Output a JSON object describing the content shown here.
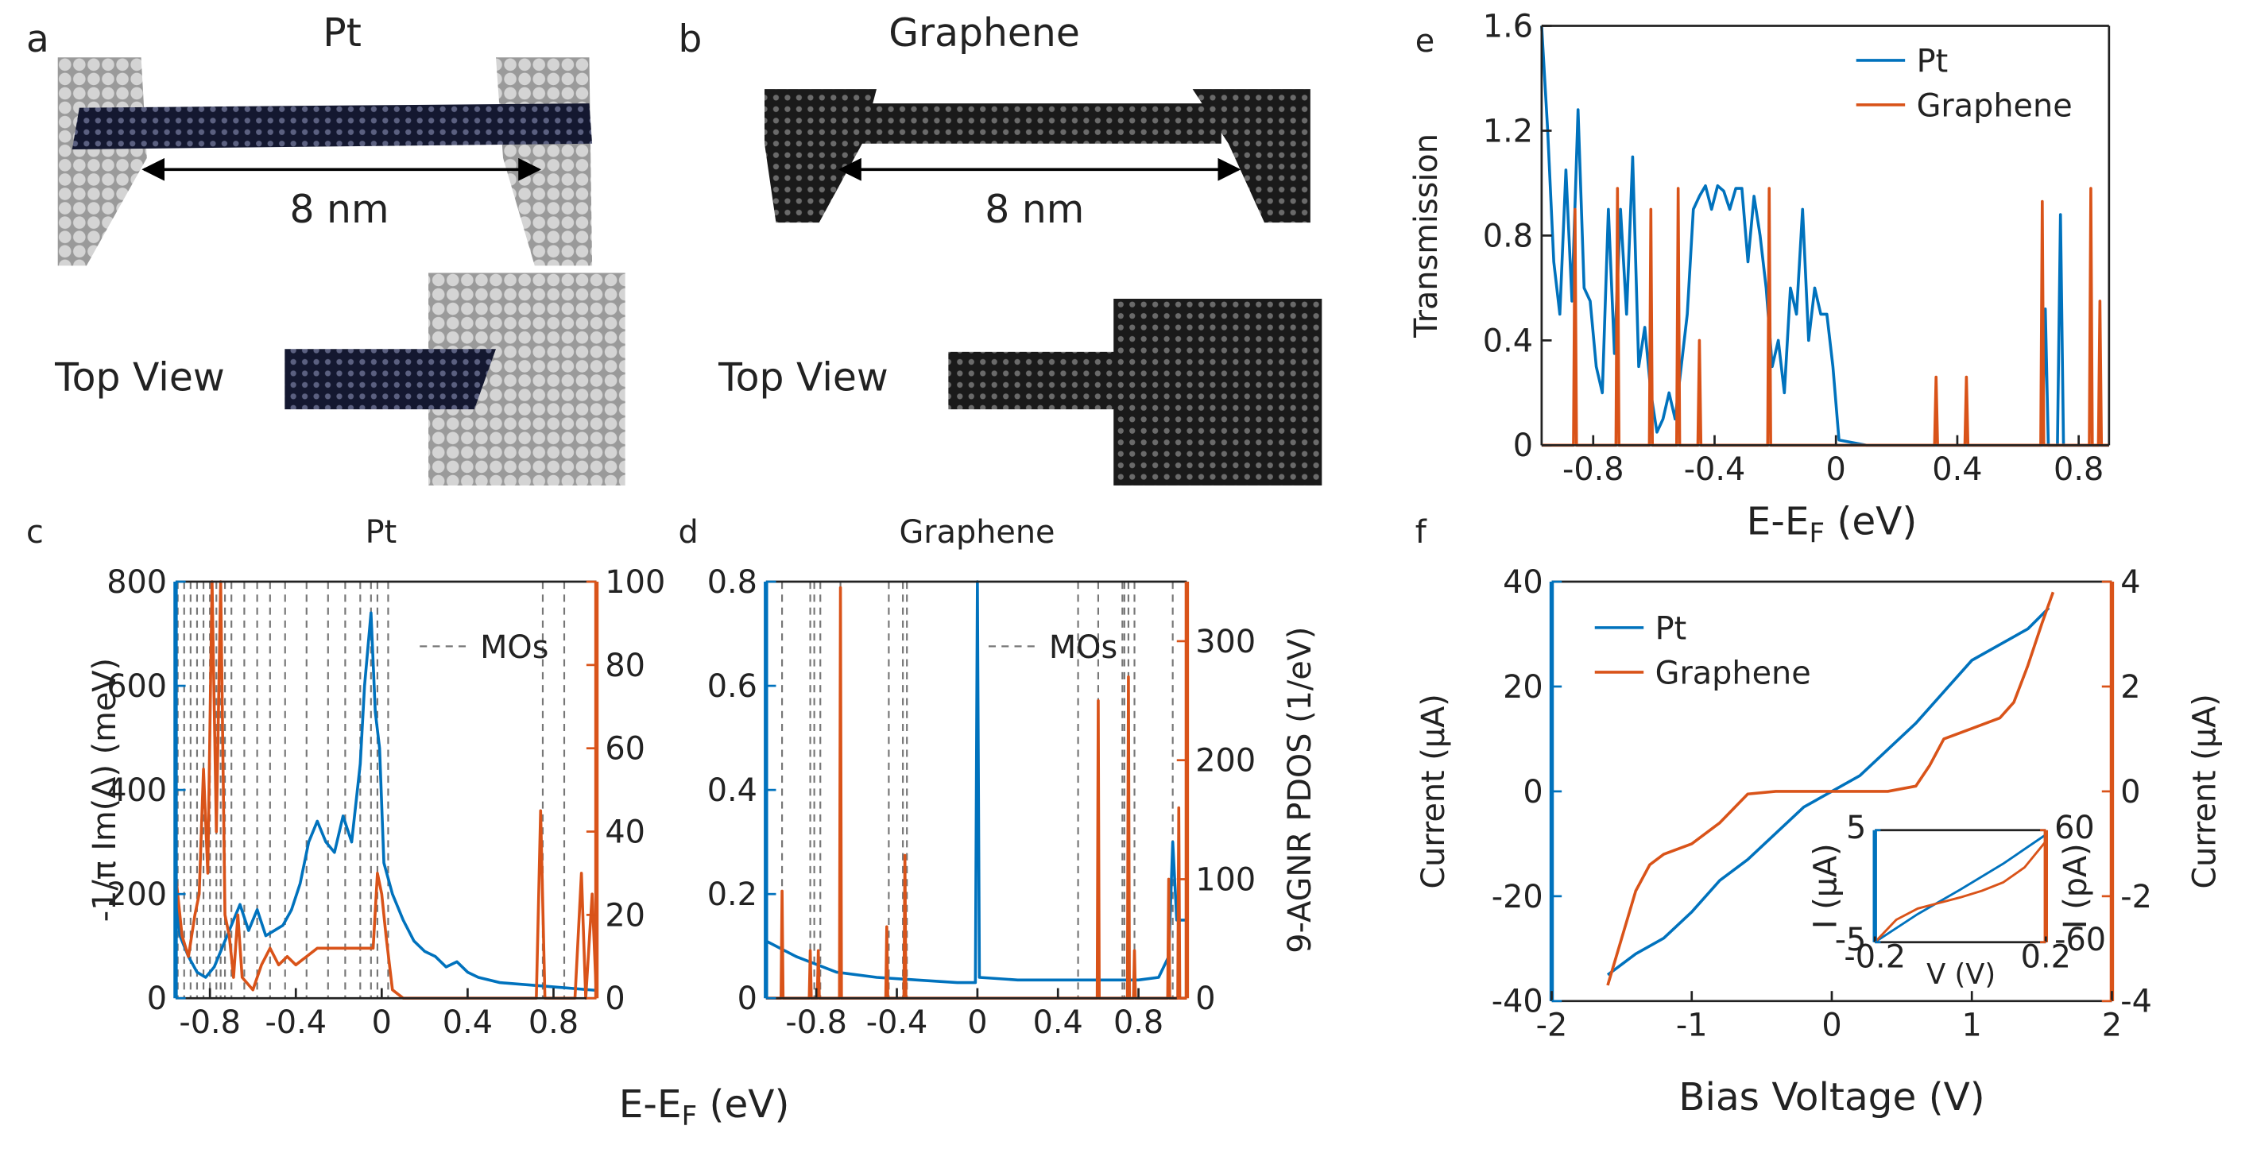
{
  "illustrations": [
    {
      "panel": "a",
      "title": "Pt",
      "length": "8 nm",
      "view": "Top View"
    },
    {
      "panel": "b",
      "title": "Graphene",
      "length": "8 nm",
      "view": "Top View"
    }
  ],
  "chart_data": [
    {
      "panel": "c",
      "type": "line",
      "title": "Pt",
      "xlabel": [
        "E-E",
        "F",
        " (eV)"
      ],
      "ylabel": "-1/π Im(Δ) (meV)",
      "xlim": [
        -0.96,
        1.0
      ],
      "xticks": [
        -0.8,
        -0.4,
        0,
        0.4,
        0.8
      ],
      "ylim": [
        0,
        800
      ],
      "yticks": [
        0,
        200,
        400,
        600,
        800
      ],
      "y_color": "#0072bd",
      "y2lim": [
        0,
        100
      ],
      "y2ticks": [
        0,
        20,
        40,
        60,
        80,
        100
      ],
      "y2_color": "#d95319",
      "vlines": {
        "name": "MOs",
        "color": "#777777",
        "x": [
          -0.95,
          -0.92,
          -0.89,
          -0.86,
          -0.83,
          -0.8,
          -0.77,
          -0.75,
          -0.73,
          -0.7,
          -0.64,
          -0.58,
          -0.52,
          -0.45,
          -0.35,
          -0.25,
          -0.17,
          -0.1,
          -0.05,
          -0.02,
          0.03,
          0.75,
          0.85
        ]
      },
      "series": [
        {
          "color": "#0072bd",
          "x": [
            -0.96,
            -0.94,
            -0.9,
            -0.86,
            -0.82,
            -0.78,
            -0.74,
            -0.7,
            -0.66,
            -0.62,
            -0.58,
            -0.54,
            -0.5,
            -0.46,
            -0.42,
            -0.38,
            -0.34,
            -0.3,
            -0.26,
            -0.22,
            -0.18,
            -0.14,
            -0.1,
            -0.08,
            -0.05,
            -0.03,
            -0.01,
            0.01,
            0.05,
            0.1,
            0.15,
            0.2,
            0.25,
            0.3,
            0.35,
            0.4,
            0.45,
            0.55,
            0.7,
            0.85,
            1.0
          ],
          "values": [
            200,
            120,
            80,
            50,
            40,
            60,
            100,
            140,
            180,
            130,
            170,
            120,
            130,
            140,
            170,
            220,
            300,
            340,
            300,
            280,
            350,
            300,
            450,
            600,
            740,
            550,
            480,
            260,
            200,
            150,
            110,
            90,
            80,
            60,
            70,
            50,
            40,
            30,
            25,
            20,
            15
          ]
        },
        {
          "color": "#d95319",
          "axis": "y2",
          "x": [
            -0.96,
            -0.93,
            -0.9,
            -0.87,
            -0.85,
            -0.83,
            -0.81,
            -0.79,
            -0.77,
            -0.75,
            -0.73,
            -0.71,
            -0.69,
            -0.67,
            -0.65,
            -0.6,
            -0.56,
            -0.52,
            -0.48,
            -0.44,
            -0.4,
            -0.3,
            -0.2,
            -0.1,
            -0.04,
            -0.02,
            0,
            0.02,
            0.05,
            0.1,
            0.72,
            0.74,
            0.76,
            0.9,
            0.93,
            0.95,
            0.98,
            1.0
          ],
          "values": [
            30,
            15,
            10,
            20,
            25,
            55,
            30,
            100,
            40,
            100,
            20,
            15,
            5,
            20,
            5,
            2,
            8,
            12,
            8,
            10,
            8,
            12,
            12,
            12,
            12,
            30,
            25,
            15,
            2,
            0,
            0,
            45,
            0,
            0,
            30,
            0,
            25,
            0
          ]
        }
      ]
    },
    {
      "panel": "d",
      "type": "line",
      "title": "Graphene",
      "y2label": "9-AGNR PDOS (1/eV)",
      "xlim": [
        -1.05,
        1.04
      ],
      "xticks": [
        -0.8,
        -0.4,
        0,
        0.4,
        0.8
      ],
      "ylim": [
        0,
        0.8
      ],
      "yticks": [
        0,
        0.2,
        0.4,
        0.6,
        0.8
      ],
      "y_color": "#0072bd",
      "y2lim": [
        0,
        350
      ],
      "y2ticks": [
        0,
        100,
        200,
        300
      ],
      "y2_color": "#d95319",
      "vlines": {
        "name": "MOs",
        "color": "#777777",
        "x": [
          -0.97,
          -0.83,
          -0.81,
          -0.78,
          -0.68,
          -0.44,
          -0.37,
          -0.35,
          0.5,
          0.6,
          0.72,
          0.73,
          0.75,
          0.78,
          0.97
        ]
      },
      "series": [
        {
          "color": "#0072bd",
          "x": [
            -1.05,
            -0.9,
            -0.7,
            -0.5,
            -0.3,
            -0.1,
            -0.01,
            0,
            0.01,
            0.2,
            0.5,
            0.8,
            0.9,
            0.95,
            0.97,
            0.99,
            1.04
          ],
          "values": [
            0.11,
            0.08,
            0.05,
            0.04,
            0.035,
            0.03,
            0.03,
            0.8,
            0.04,
            0.035,
            0.035,
            0.035,
            0.04,
            0.08,
            0.3,
            0.15,
            0.15
          ]
        },
        {
          "color": "#d95319",
          "axis": "y2",
          "x": [
            -1.05,
            -0.975,
            -0.97,
            -0.965,
            -0.835,
            -0.83,
            -0.825,
            -0.795,
            -0.79,
            -0.785,
            -0.685,
            -0.68,
            -0.675,
            -0.455,
            -0.45,
            -0.445,
            -0.365,
            -0.36,
            -0.355,
            0.595,
            0.6,
            0.605,
            0.745,
            0.75,
            0.755,
            0.775,
            0.78,
            0.785,
            0.945,
            0.95,
            0.955,
            0.995,
            1.0,
            1.005,
            1.04
          ],
          "values": [
            0,
            0,
            90,
            0,
            0,
            40,
            0,
            0,
            40,
            0,
            0,
            345,
            0,
            0,
            60,
            0,
            0,
            120,
            0,
            0,
            250,
            0,
            0,
            270,
            0,
            0,
            40,
            0,
            0,
            100,
            0,
            0,
            160,
            0,
            0
          ]
        }
      ]
    },
    {
      "panel": "e",
      "type": "line",
      "xlabel": [
        "E-E",
        "F",
        " (eV)"
      ],
      "ylabel": "Transmission",
      "xlim": [
        -0.97,
        0.9
      ],
      "xticks": [
        -0.8,
        -0.4,
        0,
        0.4,
        0.8
      ],
      "ylim": [
        0,
        1.6
      ],
      "yticks": [
        0,
        0.4,
        0.8,
        1.2,
        1.6
      ],
      "legend": "top-left",
      "series": [
        {
          "name": "Pt",
          "color": "#0072bd",
          "x": [
            -0.97,
            -0.95,
            -0.93,
            -0.91,
            -0.89,
            -0.87,
            -0.85,
            -0.83,
            -0.81,
            -0.79,
            -0.77,
            -0.75,
            -0.73,
            -0.71,
            -0.69,
            -0.67,
            -0.65,
            -0.63,
            -0.61,
            -0.59,
            -0.57,
            -0.55,
            -0.53,
            -0.51,
            -0.49,
            -0.47,
            -0.45,
            -0.43,
            -0.41,
            -0.39,
            -0.37,
            -0.35,
            -0.33,
            -0.31,
            -0.29,
            -0.27,
            -0.25,
            -0.23,
            -0.21,
            -0.19,
            -0.17,
            -0.15,
            -0.13,
            -0.11,
            -0.09,
            -0.07,
            -0.05,
            -0.03,
            -0.01,
            0.01,
            0.1,
            0.68,
            0.69,
            0.7,
            0.73,
            0.74,
            0.75,
            0.9
          ],
          "values": [
            1.6,
            1.2,
            0.7,
            0.5,
            1.05,
            0.55,
            1.28,
            0.6,
            0.55,
            0.3,
            0.2,
            0.9,
            0.35,
            0.9,
            0.5,
            1.1,
            0.3,
            0.45,
            0.2,
            0.05,
            0.1,
            0.2,
            0.1,
            0.3,
            0.5,
            0.9,
            0.95,
            0.99,
            0.9,
            0.99,
            0.97,
            0.9,
            0.98,
            0.98,
            0.7,
            0.95,
            0.8,
            0.6,
            0.3,
            0.4,
            0.2,
            0.6,
            0.5,
            0.9,
            0.4,
            0.6,
            0.5,
            0.5,
            0.3,
            0.02,
            0,
            0,
            0.52,
            0,
            0,
            0.88,
            0,
            0
          ]
        },
        {
          "name": "Graphene",
          "color": "#d95319",
          "x": [
            -0.97,
            -0.865,
            -0.86,
            -0.855,
            -0.725,
            -0.72,
            -0.715,
            -0.615,
            -0.61,
            -0.605,
            -0.525,
            -0.52,
            -0.515,
            -0.455,
            -0.45,
            -0.445,
            -0.225,
            -0.22,
            -0.215,
            0.325,
            0.33,
            0.335,
            0.425,
            0.43,
            0.435,
            0.675,
            0.68,
            0.685,
            0.835,
            0.84,
            0.845,
            0.865,
            0.87,
            0.875,
            0.9
          ],
          "values": [
            0,
            0,
            0.9,
            0,
            0,
            0.98,
            0,
            0,
            0.9,
            0,
            0,
            0.98,
            0,
            0,
            0.4,
            0,
            0,
            0.98,
            0,
            0,
            0.26,
            0,
            0,
            0.26,
            0,
            0,
            0.93,
            0,
            0,
            0.98,
            0,
            0,
            0.55,
            0,
            0
          ]
        }
      ]
    },
    {
      "panel": "f",
      "type": "line",
      "xlabel": [
        "Bias Voltage (V)"
      ],
      "ylabel": "Current (μA)",
      "y2label": "Current (μA)",
      "xlim": [
        -2,
        2
      ],
      "xticks": [
        -2,
        -1,
        0,
        1,
        2
      ],
      "ylim": [
        -40,
        40
      ],
      "yticks": [
        -40,
        -20,
        0,
        20,
        40
      ],
      "y_color": "#0072bd",
      "y2lim": [
        -4,
        4
      ],
      "y2ticks": [
        -4,
        -2,
        0,
        2,
        4
      ],
      "y2_color": "#d95319",
      "legend": "top-left",
      "series": [
        {
          "name": "Pt",
          "color": "#0072bd",
          "x": [
            -1.6,
            -1.4,
            -1.2,
            -1,
            -0.8,
            -0.6,
            -0.4,
            -0.2,
            0,
            0.2,
            0.4,
            0.6,
            0.8,
            1,
            1.2,
            1.4,
            1.55
          ],
          "values": [
            -35,
            -31,
            -28,
            -23,
            -17,
            -13,
            -8,
            -3,
            0,
            3,
            8,
            13,
            19,
            25,
            28,
            31,
            35
          ]
        },
        {
          "name": "Graphene",
          "color": "#d95319",
          "axis": "y2",
          "x": [
            -1.6,
            -1.5,
            -1.4,
            -1.3,
            -1.2,
            -1,
            -0.8,
            -0.6,
            -0.4,
            0,
            0.4,
            0.6,
            0.7,
            0.8,
            1,
            1.2,
            1.3,
            1.4,
            1.5,
            1.58
          ],
          "values": [
            -3.7,
            -2.8,
            -1.9,
            -1.4,
            -1.2,
            -1.0,
            -0.6,
            -0.05,
            0,
            0,
            0,
            0.1,
            0.5,
            1.0,
            1.2,
            1.4,
            1.7,
            2.4,
            3.2,
            3.8
          ]
        }
      ],
      "inset": {
        "type": "line",
        "xlabel": [
          "V",
          " (V)"
        ],
        "ylabel": "I (μA)",
        "y2label": "I (pA)",
        "xlim": [
          -0.2,
          0.2
        ],
        "xticks": [
          -0.2,
          0.2
        ],
        "ylim": [
          -5,
          5
        ],
        "yticks": [
          -5,
          5
        ],
        "y_color": "#0072bd",
        "y2lim": [
          -60,
          60
        ],
        "y2ticks": [
          -60,
          60
        ],
        "y2_color": "#d95319",
        "series": [
          {
            "color": "#0072bd",
            "x": [
              -0.2,
              -0.1,
              0,
              0.1,
              0.2
            ],
            "values": [
              -5,
              -2.5,
              -0.3,
              2,
              4.6
            ]
          },
          {
            "color": "#d95319",
            "axis": "y2",
            "x": [
              -0.2,
              -0.15,
              -0.1,
              -0.05,
              0,
              0.05,
              0.1,
              0.15,
              0.2
            ],
            "values": [
              -60,
              -36,
              -24,
              -18,
              -12,
              -5,
              4,
              20,
              48
            ]
          }
        ]
      }
    }
  ]
}
